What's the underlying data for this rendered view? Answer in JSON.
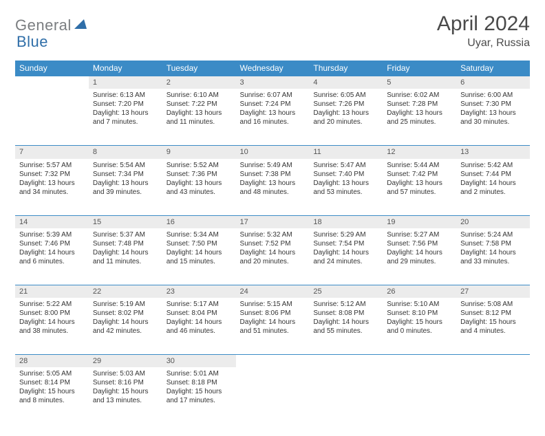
{
  "logo": {
    "part1": "General",
    "part2": "Blue"
  },
  "title": "April 2024",
  "location": "Uyar, Russia",
  "colors": {
    "header_bg": "#3b8bc6",
    "header_fg": "#ffffff",
    "daynum_bg": "#ececec",
    "rule": "#3b8bc6",
    "logo_gray": "#7a7d80",
    "logo_blue": "#2f6ea8"
  },
  "weekdays": [
    "Sunday",
    "Monday",
    "Tuesday",
    "Wednesday",
    "Thursday",
    "Friday",
    "Saturday"
  ],
  "weeks": [
    {
      "nums": [
        "",
        "1",
        "2",
        "3",
        "4",
        "5",
        "6"
      ],
      "cells": [
        null,
        {
          "sr": "Sunrise: 6:13 AM",
          "ss": "Sunset: 7:20 PM",
          "dl": "Daylight: 13 hours and 7 minutes."
        },
        {
          "sr": "Sunrise: 6:10 AM",
          "ss": "Sunset: 7:22 PM",
          "dl": "Daylight: 13 hours and 11 minutes."
        },
        {
          "sr": "Sunrise: 6:07 AM",
          "ss": "Sunset: 7:24 PM",
          "dl": "Daylight: 13 hours and 16 minutes."
        },
        {
          "sr": "Sunrise: 6:05 AM",
          "ss": "Sunset: 7:26 PM",
          "dl": "Daylight: 13 hours and 20 minutes."
        },
        {
          "sr": "Sunrise: 6:02 AM",
          "ss": "Sunset: 7:28 PM",
          "dl": "Daylight: 13 hours and 25 minutes."
        },
        {
          "sr": "Sunrise: 6:00 AM",
          "ss": "Sunset: 7:30 PM",
          "dl": "Daylight: 13 hours and 30 minutes."
        }
      ]
    },
    {
      "nums": [
        "7",
        "8",
        "9",
        "10",
        "11",
        "12",
        "13"
      ],
      "cells": [
        {
          "sr": "Sunrise: 5:57 AM",
          "ss": "Sunset: 7:32 PM",
          "dl": "Daylight: 13 hours and 34 minutes."
        },
        {
          "sr": "Sunrise: 5:54 AM",
          "ss": "Sunset: 7:34 PM",
          "dl": "Daylight: 13 hours and 39 minutes."
        },
        {
          "sr": "Sunrise: 5:52 AM",
          "ss": "Sunset: 7:36 PM",
          "dl": "Daylight: 13 hours and 43 minutes."
        },
        {
          "sr": "Sunrise: 5:49 AM",
          "ss": "Sunset: 7:38 PM",
          "dl": "Daylight: 13 hours and 48 minutes."
        },
        {
          "sr": "Sunrise: 5:47 AM",
          "ss": "Sunset: 7:40 PM",
          "dl": "Daylight: 13 hours and 53 minutes."
        },
        {
          "sr": "Sunrise: 5:44 AM",
          "ss": "Sunset: 7:42 PM",
          "dl": "Daylight: 13 hours and 57 minutes."
        },
        {
          "sr": "Sunrise: 5:42 AM",
          "ss": "Sunset: 7:44 PM",
          "dl": "Daylight: 14 hours and 2 minutes."
        }
      ]
    },
    {
      "nums": [
        "14",
        "15",
        "16",
        "17",
        "18",
        "19",
        "20"
      ],
      "cells": [
        {
          "sr": "Sunrise: 5:39 AM",
          "ss": "Sunset: 7:46 PM",
          "dl": "Daylight: 14 hours and 6 minutes."
        },
        {
          "sr": "Sunrise: 5:37 AM",
          "ss": "Sunset: 7:48 PM",
          "dl": "Daylight: 14 hours and 11 minutes."
        },
        {
          "sr": "Sunrise: 5:34 AM",
          "ss": "Sunset: 7:50 PM",
          "dl": "Daylight: 14 hours and 15 minutes."
        },
        {
          "sr": "Sunrise: 5:32 AM",
          "ss": "Sunset: 7:52 PM",
          "dl": "Daylight: 14 hours and 20 minutes."
        },
        {
          "sr": "Sunrise: 5:29 AM",
          "ss": "Sunset: 7:54 PM",
          "dl": "Daylight: 14 hours and 24 minutes."
        },
        {
          "sr": "Sunrise: 5:27 AM",
          "ss": "Sunset: 7:56 PM",
          "dl": "Daylight: 14 hours and 29 minutes."
        },
        {
          "sr": "Sunrise: 5:24 AM",
          "ss": "Sunset: 7:58 PM",
          "dl": "Daylight: 14 hours and 33 minutes."
        }
      ]
    },
    {
      "nums": [
        "21",
        "22",
        "23",
        "24",
        "25",
        "26",
        "27"
      ],
      "cells": [
        {
          "sr": "Sunrise: 5:22 AM",
          "ss": "Sunset: 8:00 PM",
          "dl": "Daylight: 14 hours and 38 minutes."
        },
        {
          "sr": "Sunrise: 5:19 AM",
          "ss": "Sunset: 8:02 PM",
          "dl": "Daylight: 14 hours and 42 minutes."
        },
        {
          "sr": "Sunrise: 5:17 AM",
          "ss": "Sunset: 8:04 PM",
          "dl": "Daylight: 14 hours and 46 minutes."
        },
        {
          "sr": "Sunrise: 5:15 AM",
          "ss": "Sunset: 8:06 PM",
          "dl": "Daylight: 14 hours and 51 minutes."
        },
        {
          "sr": "Sunrise: 5:12 AM",
          "ss": "Sunset: 8:08 PM",
          "dl": "Daylight: 14 hours and 55 minutes."
        },
        {
          "sr": "Sunrise: 5:10 AM",
          "ss": "Sunset: 8:10 PM",
          "dl": "Daylight: 15 hours and 0 minutes."
        },
        {
          "sr": "Sunrise: 5:08 AM",
          "ss": "Sunset: 8:12 PM",
          "dl": "Daylight: 15 hours and 4 minutes."
        }
      ]
    },
    {
      "nums": [
        "28",
        "29",
        "30",
        "",
        "",
        "",
        ""
      ],
      "cells": [
        {
          "sr": "Sunrise: 5:05 AM",
          "ss": "Sunset: 8:14 PM",
          "dl": "Daylight: 15 hours and 8 minutes."
        },
        {
          "sr": "Sunrise: 5:03 AM",
          "ss": "Sunset: 8:16 PM",
          "dl": "Daylight: 15 hours and 13 minutes."
        },
        {
          "sr": "Sunrise: 5:01 AM",
          "ss": "Sunset: 8:18 PM",
          "dl": "Daylight: 15 hours and 17 minutes."
        },
        null,
        null,
        null,
        null
      ]
    }
  ]
}
